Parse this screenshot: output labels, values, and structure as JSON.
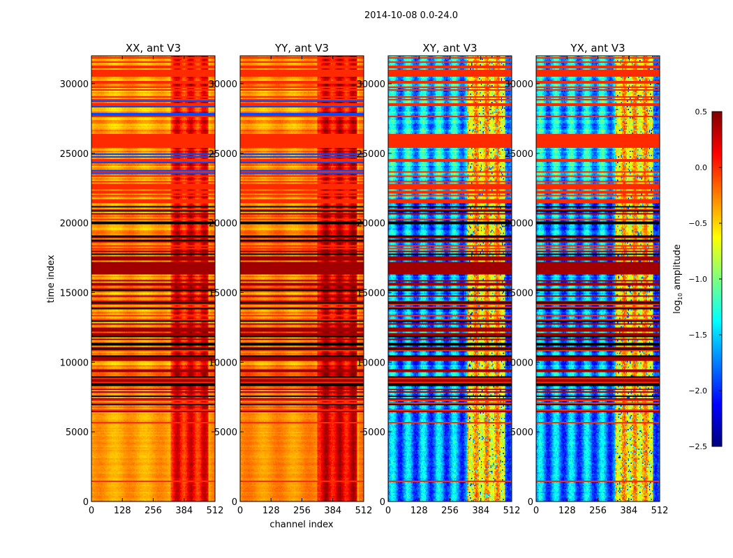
{
  "chart_data": {
    "type": "heatmap",
    "suptitle": "2014-10-08 0.0-24.0",
    "xlabel": "channel index",
    "ylabel": "time index",
    "xlim": [
      0,
      512
    ],
    "ylim": [
      0,
      32000
    ],
    "xticks": [
      0,
      128,
      256,
      384,
      512
    ],
    "yticks": [
      0,
      5000,
      10000,
      15000,
      20000,
      25000,
      30000
    ],
    "panels": [
      {
        "title": "XX, ant V3",
        "kind": "auto",
        "base_log_amp": -0.35,
        "hot_channel_range": [
          325,
          480
        ],
        "hot_log_amp": 0.1
      },
      {
        "title": "YY, ant V3",
        "kind": "auto",
        "base_log_amp": -0.3,
        "hot_channel_range": [
          320,
          480
        ],
        "hot_log_amp": 0.2
      },
      {
        "title": "XY, ant V3",
        "kind": "cross",
        "base_log_amp": -1.7,
        "hot_channel_range": [
          325,
          480
        ],
        "hot_log_amp": -0.5
      },
      {
        "title": "YX, ant V3",
        "kind": "cross",
        "base_log_amp": -1.7,
        "hot_channel_range": [
          325,
          480
        ],
        "hot_log_amp": -0.5
      }
    ],
    "time_regions": [
      {
        "range": [
          0,
          6300
        ],
        "description_level": "quiet"
      },
      {
        "range": [
          6300,
          21300
        ],
        "description_level": "striped"
      },
      {
        "range": [
          21300,
          32000
        ],
        "description_level": "flagged-bands"
      }
    ],
    "colorbar": {
      "label": "log10 amplitude",
      "label_main": "log",
      "label_sub": "10",
      "label_rest": " amplitude",
      "colormap": "jet",
      "range": [
        -2.5,
        0.5
      ],
      "ticks": [
        "0.5",
        "0.0",
        "−0.5",
        "−1.0",
        "−1.5",
        "−2.0",
        "−2.5"
      ],
      "tick_values": [
        0.5,
        0.0,
        -0.5,
        -1.0,
        -1.5,
        -2.0,
        -2.5
      ]
    }
  }
}
